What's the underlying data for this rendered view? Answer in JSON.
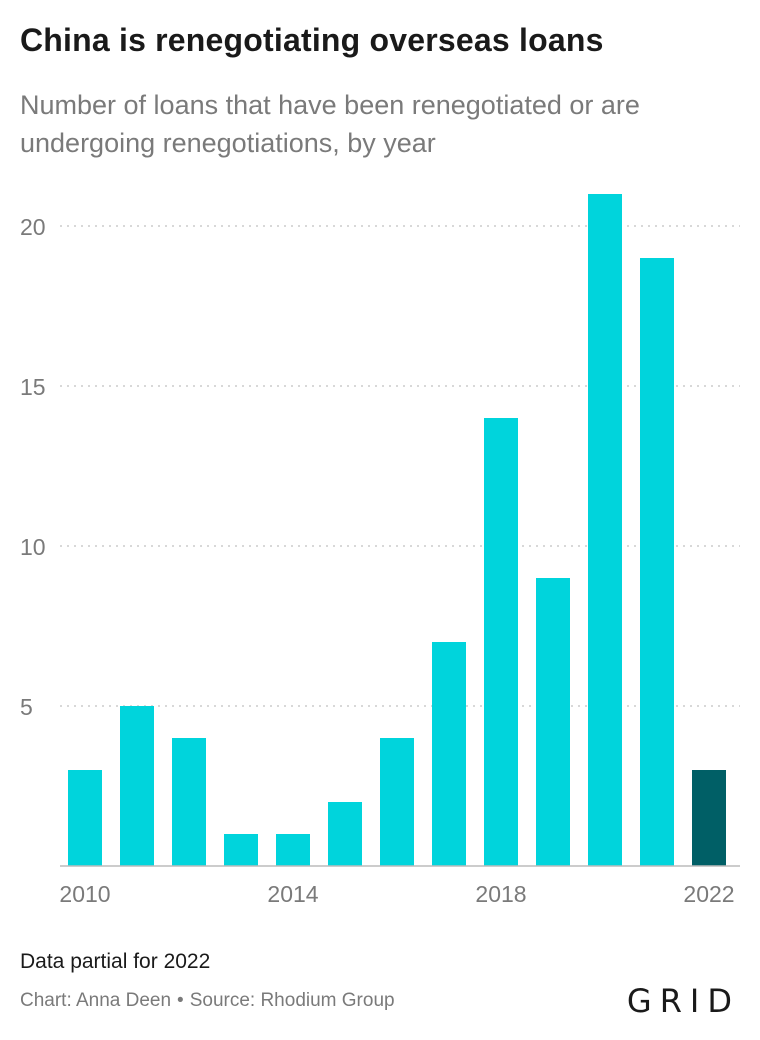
{
  "title": "China is renegotiating overseas loans",
  "subtitle": "Number of loans that have been renegotiated or are undergoing renegotiations, by year",
  "footer": {
    "note": "Data partial for 2022",
    "credit_chart": "Chart: Anna Deen",
    "credit_sep": "•",
    "credit_source": "Source: Rhodium Group",
    "logo": "GRID"
  },
  "colors": {
    "bar": "#00d4dc",
    "bar_partial": "#005f66",
    "grid": "#cccccc",
    "axis_text": "#7a7a7a"
  },
  "chart_data": {
    "type": "bar",
    "title": "China is renegotiating overseas loans",
    "subtitle": "Number of loans that have been renegotiated or are undergoing renegotiations, by year",
    "xlabel": "",
    "ylabel": "",
    "categories": [
      "2010",
      "2011",
      "2012",
      "2013",
      "2014",
      "2015",
      "2016",
      "2017",
      "2018",
      "2019",
      "2020",
      "2021",
      "2022"
    ],
    "values": [
      3,
      5,
      4,
      1,
      1,
      2,
      4,
      7,
      14,
      9,
      21,
      19,
      3
    ],
    "partial": [
      false,
      false,
      false,
      false,
      false,
      false,
      false,
      false,
      false,
      false,
      false,
      false,
      true
    ],
    "ylim": [
      0,
      21
    ],
    "yticks": [
      5,
      10,
      15,
      20
    ],
    "xtick_labels": [
      "2010",
      "2014",
      "2018",
      "2022"
    ],
    "grid": true,
    "legend": "none"
  }
}
